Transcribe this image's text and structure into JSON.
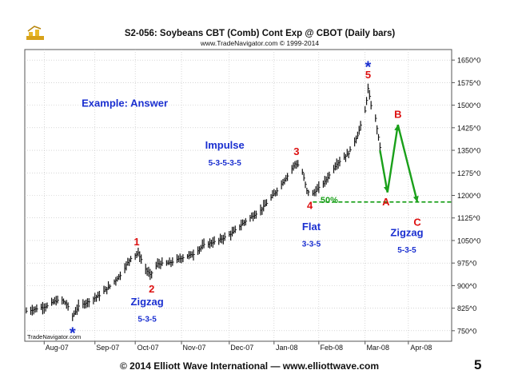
{
  "slide": {
    "footer": "© 2014 Elliott Wave International — www.elliottwave.com",
    "page_number": "5"
  },
  "chart_data": {
    "type": "candlestick",
    "title": "S2-056:  Soybeans CBT (Comb) Cont Exp @ CBOT  (Daily bars)",
    "subtitle": "www.TradeNavigator.com © 1999-2014",
    "watermark": "TradeNavigator.com",
    "x_ticks": [
      "Aug-07",
      "Sep-07",
      "Oct-07",
      "Nov-07",
      "Dec-07",
      "Jan-08",
      "Feb-08",
      "Mar-08",
      "Apr-08"
    ],
    "x_tick_dates": [
      "2007-08-01",
      "2007-09-04",
      "2007-10-01",
      "2007-11-01",
      "2007-12-03",
      "2008-01-02",
      "2008-02-01",
      "2008-03-03",
      "2008-04-01"
    ],
    "x_range": [
      "2007-07-19",
      "2008-04-30"
    ],
    "y_ticks": [
      "750^0",
      "825^0",
      "900^0",
      "975^0",
      "1050^0",
      "1125^0",
      "1200^0",
      "1275^0",
      "1350^0",
      "1425^0",
      "1500^0",
      "1575^0",
      "1650^0"
    ],
    "y_tick_values": [
      750,
      825,
      900,
      975,
      1050,
      1125,
      1200,
      1275,
      1350,
      1425,
      1500,
      1575,
      1650
    ],
    "ylim": [
      715,
      1685
    ],
    "grid": true,
    "anchors": [
      [
        "2007-07-20",
        815
      ],
      [
        "2007-07-26",
        822
      ],
      [
        "2007-08-03",
        832
      ],
      [
        "2007-08-08",
        848
      ],
      [
        "2007-08-13",
        852
      ],
      [
        "2007-08-16",
        838
      ],
      [
        "2007-08-20",
        798
      ],
      [
        "2007-08-24",
        830
      ],
      [
        "2007-08-31",
        848
      ],
      [
        "2007-09-07",
        868
      ],
      [
        "2007-09-14",
        898
      ],
      [
        "2007-09-21",
        935
      ],
      [
        "2007-09-28",
        992
      ],
      [
        "2007-10-03",
        1008
      ],
      [
        "2007-10-08",
        955
      ],
      [
        "2007-10-11",
        935
      ],
      [
        "2007-10-16",
        972
      ],
      [
        "2007-10-24",
        975
      ],
      [
        "2007-11-01",
        992
      ],
      [
        "2007-11-09",
        1005
      ],
      [
        "2007-11-16",
        1035
      ],
      [
        "2007-11-26",
        1050
      ],
      [
        "2007-12-05",
        1075
      ],
      [
        "2007-12-14",
        1115
      ],
      [
        "2007-12-24",
        1150
      ],
      [
        "2008-01-03",
        1210
      ],
      [
        "2008-01-11",
        1265
      ],
      [
        "2008-01-16",
        1305
      ],
      [
        "2008-01-20",
        1298
      ],
      [
        "2008-01-24",
        1215
      ],
      [
        "2008-01-28",
        1205
      ],
      [
        "2008-02-05",
        1245
      ],
      [
        "2008-02-13",
        1305
      ],
      [
        "2008-02-21",
        1340
      ],
      [
        "2008-02-27",
        1400
      ],
      [
        "2008-03-03",
        1480
      ],
      [
        "2008-03-05",
        1555
      ],
      [
        "2008-03-07",
        1500
      ],
      [
        "2008-03-10",
        1455
      ],
      [
        "2008-03-13",
        1360
      ]
    ],
    "annotations": [
      {
        "text": "1",
        "date": "2007-10-02",
        "price": 1045,
        "color": "#dd1111"
      },
      {
        "text": "2",
        "date": "2007-10-12",
        "price": 888,
        "color": "#dd1111"
      },
      {
        "text": "3",
        "date": "2008-01-17",
        "price": 1345,
        "color": "#dd1111"
      },
      {
        "text": "4",
        "date": "2008-01-26",
        "price": 1165,
        "color": "#dd1111"
      },
      {
        "text": "5",
        "date": "2008-03-05",
        "price": 1600,
        "color": "#dd1111"
      },
      {
        "text": "*",
        "date": "2008-03-05",
        "price": 1630,
        "color": "#1a2fd0"
      },
      {
        "text": "*",
        "date": "2007-08-20",
        "price": 745,
        "color": "#1a2fd0"
      },
      {
        "text": "A",
        "date": "2008-03-17",
        "price": 1178,
        "color": "#dd1111"
      },
      {
        "text": "B",
        "date": "2008-03-25",
        "price": 1468,
        "color": "#dd1111"
      },
      {
        "text": "C",
        "date": "2008-04-07",
        "price": 1110,
        "color": "#dd1111"
      },
      {
        "text": "50%",
        "date": "2008-02-08",
        "price": 1185,
        "color": "#1aa01a"
      }
    ],
    "labels": [
      {
        "text": "Example: Answer",
        "date": "2007-09-24",
        "price": 1495
      },
      {
        "text": "Impulse",
        "date": "2007-11-30",
        "price": 1355
      },
      {
        "text": "5-3-5-3-5",
        "date": "2007-11-30",
        "price": 1300
      },
      {
        "text": "Zigzag",
        "date": "2007-10-09",
        "price": 835
      },
      {
        "text": "5-3-5",
        "date": "2007-10-09",
        "price": 780
      },
      {
        "text": "Flat",
        "date": "2008-01-27",
        "price": 1085
      },
      {
        "text": "3-3-5",
        "date": "2008-01-27",
        "price": 1030
      },
      {
        "text": "Zigzag",
        "date": "2008-03-31",
        "price": 1065
      },
      {
        "text": "5-3-5",
        "date": "2008-03-31",
        "price": 1010
      }
    ],
    "fifty_percent_level": {
      "price": 1178,
      "from": "2008-01-28",
      "to": "2008-04-30",
      "color": "#1aa01a"
    },
    "projection_path": [
      [
        "2008-03-13",
        1350
      ],
      [
        "2008-03-18",
        1210
      ],
      [
        "2008-03-25",
        1435
      ],
      [
        "2008-04-07",
        1178
      ]
    ],
    "projection_color": "#1aa01a",
    "label_color": "#1a2fd0"
  }
}
